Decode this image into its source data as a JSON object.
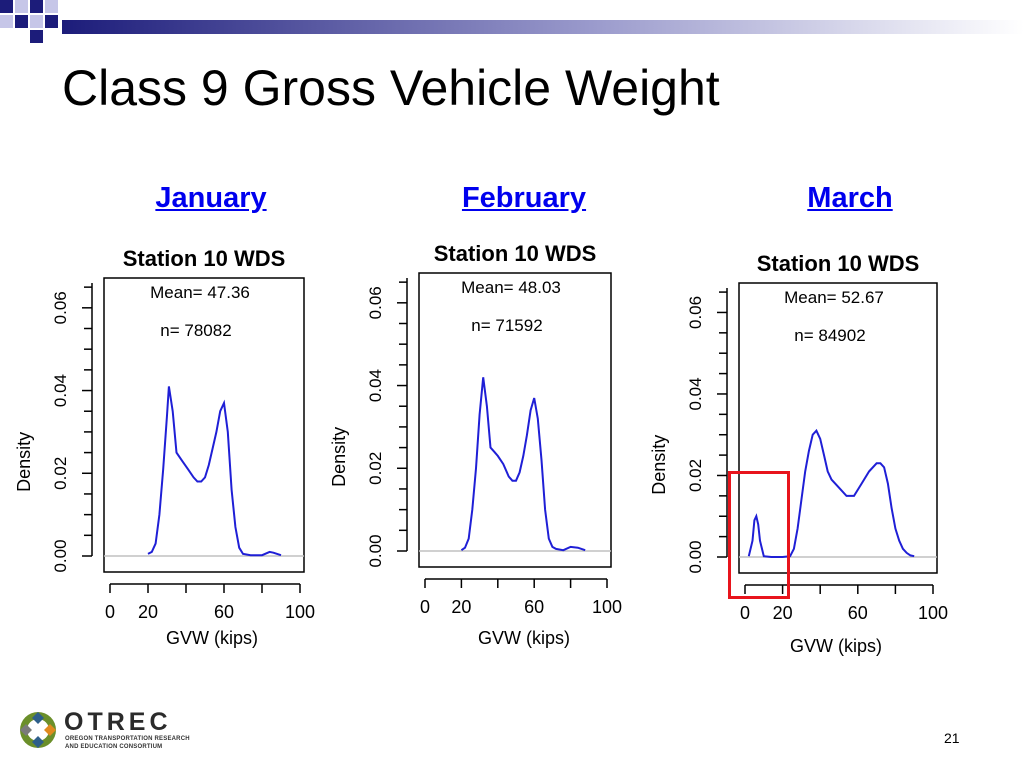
{
  "slide": {
    "title": "Class 9 Gross Vehicle Weight",
    "page_number": "21",
    "logo": {
      "name": "OTREC",
      "subtitle_line1": "OREGON TRANSPORTATION RESEARCH",
      "subtitle_line2": "AND EDUCATION CONSORTIUM"
    },
    "months": [
      "January",
      "February",
      "March"
    ]
  },
  "colors": {
    "curve": "#1f1fd6",
    "baseline": "#c0c0c0",
    "link": "#0000ee",
    "highlight": "#e8141c",
    "deco_navy": "#1c1c7a"
  },
  "chart_data": [
    {
      "type": "line",
      "title": "Station 10 WDS",
      "mean_text": "Mean= 47.36",
      "n_text": "n= 78082",
      "xlabel": "GVW (kips)",
      "ylabel": "Density",
      "xlim": [
        0,
        100
      ],
      "ylim": [
        0,
        0.07
      ],
      "xticks": [
        0,
        20,
        60,
        100
      ],
      "xtick_labels": [
        "0",
        "20",
        "60",
        "100"
      ],
      "yticks": [
        0.0,
        0.02,
        0.04,
        0.06
      ],
      "ytick_labels": [
        "0.00",
        "0.02",
        "0.04",
        "0.06"
      ],
      "series": [
        {
          "x": [
            20,
            22,
            24,
            26,
            28,
            30,
            31,
            33,
            35,
            38,
            41,
            44,
            46,
            48,
            50,
            52,
            54,
            56,
            58,
            60,
            62,
            64,
            66,
            68,
            70,
            74,
            80,
            84,
            86,
            90
          ],
          "y": [
            0.0005,
            0.001,
            0.003,
            0.01,
            0.021,
            0.034,
            0.041,
            0.035,
            0.025,
            0.023,
            0.021,
            0.019,
            0.018,
            0.018,
            0.019,
            0.022,
            0.026,
            0.03,
            0.035,
            0.037,
            0.03,
            0.016,
            0.007,
            0.002,
            0.0005,
            0.0002,
            0.0002,
            0.001,
            0.0008,
            0.0002
          ]
        }
      ]
    },
    {
      "type": "line",
      "title": "Station 10 WDS",
      "mean_text": "Mean= 48.03",
      "n_text": "n= 71592",
      "xlabel": "GVW (kips)",
      "ylabel": "Density",
      "xlim": [
        0,
        100
      ],
      "ylim": [
        0,
        0.07
      ],
      "xticks": [
        0,
        20,
        60,
        100
      ],
      "xtick_labels": [
        "0",
        "20",
        "60",
        "100"
      ],
      "yticks": [
        0.0,
        0.02,
        0.04,
        0.06
      ],
      "ytick_labels": [
        "0.00",
        "0.02",
        "0.04",
        "0.06"
      ],
      "series": [
        {
          "x": [
            20,
            22,
            24,
            26,
            28,
            30,
            32,
            34,
            36,
            38,
            40,
            43,
            46,
            48,
            50,
            52,
            54,
            56,
            58,
            60,
            62,
            64,
            66,
            68,
            70,
            72,
            76,
            80,
            84,
            88
          ],
          "y": [
            0.0002,
            0.0008,
            0.003,
            0.01,
            0.02,
            0.033,
            0.042,
            0.035,
            0.025,
            0.024,
            0.023,
            0.021,
            0.018,
            0.017,
            0.017,
            0.019,
            0.023,
            0.028,
            0.034,
            0.037,
            0.032,
            0.022,
            0.01,
            0.003,
            0.001,
            0.0005,
            0.0002,
            0.001,
            0.0008,
            0.0002
          ]
        }
      ]
    },
    {
      "type": "line",
      "title": "Station 10 WDS",
      "mean_text": "Mean= 52.67",
      "n_text": "n= 84902",
      "xlabel": "GVW (kips)",
      "ylabel": "Density",
      "xlim": [
        0,
        100
      ],
      "ylim": [
        0,
        0.07
      ],
      "xticks": [
        0,
        20,
        60,
        100
      ],
      "xtick_labels": [
        "0",
        "20",
        "60",
        "100"
      ],
      "yticks": [
        0.0,
        0.02,
        0.04,
        0.06
      ],
      "ytick_labels": [
        "0.00",
        "0.02",
        "0.04",
        "0.06"
      ],
      "highlight_range": [
        0,
        20
      ],
      "series": [
        {
          "x": [
            2,
            4,
            5,
            6,
            7,
            8,
            10,
            14,
            20,
            24,
            26,
            28,
            30,
            32,
            34,
            36,
            38,
            40,
            42,
            44,
            46,
            48,
            50,
            54,
            58,
            62,
            66,
            70,
            72,
            74,
            76,
            78,
            80,
            82,
            84,
            86,
            88,
            90
          ],
          "y": [
            0.0002,
            0.004,
            0.009,
            0.01,
            0.008,
            0.004,
            0.0002,
            0.0,
            0.0,
            0.0002,
            0.002,
            0.007,
            0.014,
            0.021,
            0.026,
            0.03,
            0.031,
            0.029,
            0.025,
            0.021,
            0.019,
            0.018,
            0.017,
            0.015,
            0.015,
            0.018,
            0.021,
            0.023,
            0.023,
            0.022,
            0.018,
            0.012,
            0.007,
            0.004,
            0.002,
            0.001,
            0.0004,
            0.0002
          ]
        }
      ]
    }
  ]
}
